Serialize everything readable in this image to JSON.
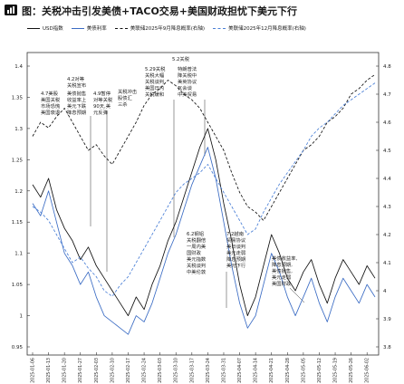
{
  "chart_data": {
    "type": "line",
    "title": "图：关税冲击引发美债+TACO交易+美国财政担忧下美元下行",
    "x": [
      "2025-01-06",
      "2025-01-09",
      "2025-01-13",
      "2025-01-16",
      "2025-01-20",
      "2025-01-23",
      "2025-01-27",
      "2025-01-30",
      "2025-02-03",
      "2025-02-06",
      "2025-02-10",
      "2025-02-13",
      "2025-02-17",
      "2025-02-20",
      "2025-02-24",
      "2025-02-27",
      "2025-03-03",
      "2025-03-06",
      "2025-03-10",
      "2025-03-13",
      "2025-03-17",
      "2025-03-20",
      "2025-03-24",
      "2025-03-27",
      "2025-03-31",
      "2025-04-03",
      "2025-04-07",
      "2025-04-10",
      "2025-04-14",
      "2025-04-17",
      "2025-04-21",
      "2025-04-24",
      "2025-04-28",
      "2025-05-01",
      "2025-05-05",
      "2025-05-08",
      "2025-05-12",
      "2025-05-15",
      "2025-05-19",
      "2025-05-22",
      "2025-05-26",
      "2025-05-29",
      "2025-06-02",
      "2025-06-05"
    ],
    "y_left": {
      "min": 0.95,
      "max": 1.4,
      "ticks": [
        "1.4",
        "1.35",
        "1.3",
        "1.25",
        "1.2",
        "1.15",
        "1.1",
        "1.05",
        "1",
        "0.95"
      ]
    },
    "y_right": {
      "min": 3.8,
      "max": 4.8,
      "ticks": [
        "4.8",
        "4.7",
        "4.6",
        "4.5",
        "4.4",
        "4.3",
        "4.2",
        "4.1",
        "4",
        "3.9",
        "3.8"
      ]
    },
    "grid": false,
    "legend_position": "top",
    "series": [
      {
        "name": "USD指数",
        "axis": "left",
        "style": "solid",
        "color": "#111111",
        "values": [
          1.21,
          1.19,
          1.22,
          1.17,
          1.14,
          1.12,
          1.09,
          1.11,
          1.08,
          1.06,
          1.04,
          1.02,
          1.0,
          1.03,
          1.01,
          1.05,
          1.08,
          1.12,
          1.15,
          1.19,
          1.23,
          1.27,
          1.3,
          1.25,
          1.18,
          1.12,
          1.05,
          1.0,
          1.03,
          1.08,
          1.13,
          1.1,
          1.06,
          1.04,
          1.07,
          1.09,
          1.05,
          1.02,
          1.06,
          1.09,
          1.07,
          1.05,
          1.08,
          1.06
        ]
      },
      {
        "name": "美债利率",
        "axis": "left",
        "style": "solid",
        "color": "#3b6cc4",
        "values": [
          1.18,
          1.16,
          1.2,
          1.15,
          1.1,
          1.08,
          1.05,
          1.07,
          1.03,
          1.0,
          0.99,
          0.98,
          0.97,
          1.0,
          0.99,
          1.02,
          1.06,
          1.1,
          1.13,
          1.17,
          1.21,
          1.24,
          1.27,
          1.22,
          1.15,
          1.08,
          1.02,
          0.98,
          1.0,
          1.05,
          1.1,
          1.07,
          1.03,
          1.0,
          1.03,
          1.06,
          1.02,
          0.99,
          1.03,
          1.06,
          1.04,
          1.02,
          1.05,
          1.03
        ]
      },
      {
        "name": "美联储2025年9月降息概率(右轴)",
        "axis": "right",
        "style": "dashed",
        "color": "#111111",
        "values": [
          4.55,
          4.6,
          4.58,
          4.62,
          4.65,
          4.6,
          4.55,
          4.5,
          4.52,
          4.48,
          4.45,
          4.5,
          4.55,
          4.6,
          4.66,
          4.7,
          4.72,
          4.75,
          4.73,
          4.7,
          4.68,
          4.65,
          4.6,
          4.55,
          4.5,
          4.42,
          4.35,
          4.3,
          4.28,
          4.25,
          4.3,
          4.35,
          4.4,
          4.45,
          4.5,
          4.52,
          4.55,
          4.6,
          4.62,
          4.65,
          4.7,
          4.72,
          4.75,
          4.77
        ]
      },
      {
        "name": "美联储2025年12月降息概率(右轴)",
        "axis": "right",
        "style": "dashed",
        "color": "#4a7fd6",
        "values": [
          4.3,
          4.28,
          4.25,
          4.2,
          4.15,
          4.1,
          4.12,
          4.08,
          4.05,
          4.0,
          3.98,
          4.02,
          4.05,
          4.1,
          4.15,
          4.2,
          4.25,
          4.3,
          4.35,
          4.38,
          4.4,
          4.42,
          4.45,
          4.4,
          4.35,
          4.3,
          4.25,
          4.2,
          4.22,
          4.28,
          4.33,
          4.38,
          4.42,
          4.46,
          4.5,
          4.55,
          4.58,
          4.6,
          4.63,
          4.66,
          4.68,
          4.7,
          4.72,
          4.74
        ]
      }
    ],
    "annotations": [
      {
        "lines": [
          "5.2关税"
        ]
      },
      {
        "lines": [
          "5.29关税",
          "关税大幅",
          "关税谈判",
          "美国日内",
          "关税缓和"
        ]
      },
      {
        "lines": [
          "特朗普法",
          "降关税中",
          "美英协议",
          "瓦会谈",
          "中美贸易"
        ]
      },
      {
        "lines": [
          "4.2对等",
          "关税宣布"
        ]
      },
      {
        "lines": [
          "4.7美股",
          "美国关税",
          "市场恐慌",
          "美国衰退"
        ]
      },
      {
        "lines": [
          "美债抛售",
          "收益率上",
          "美元下跌",
          "降息预期"
        ]
      },
      {
        "lines": [
          "4.9暂停",
          "对等关税",
          "90天,美",
          "元反弹"
        ]
      },
      {
        "lines": [
          "关税冲击",
          "股债汇",
          "三杀"
        ]
      },
      {
        "lines": [
          "6.2钢铝",
          "关税翻倍",
          "一周内美",
          "国财政",
          "美元指数",
          "关税谈判",
          "中美伦敦"
        ]
      },
      {
        "lines": [
          "7.2越南",
          "贸易协议",
          "美日谈判",
          "美元走弱",
          "降息预期",
          "美元下行"
        ]
      },
      {
        "lines": [
          "美债收益率,",
          "降息预期,",
          "美债抛售,",
          "美元走弱",
          "美国财政"
        ]
      }
    ]
  }
}
